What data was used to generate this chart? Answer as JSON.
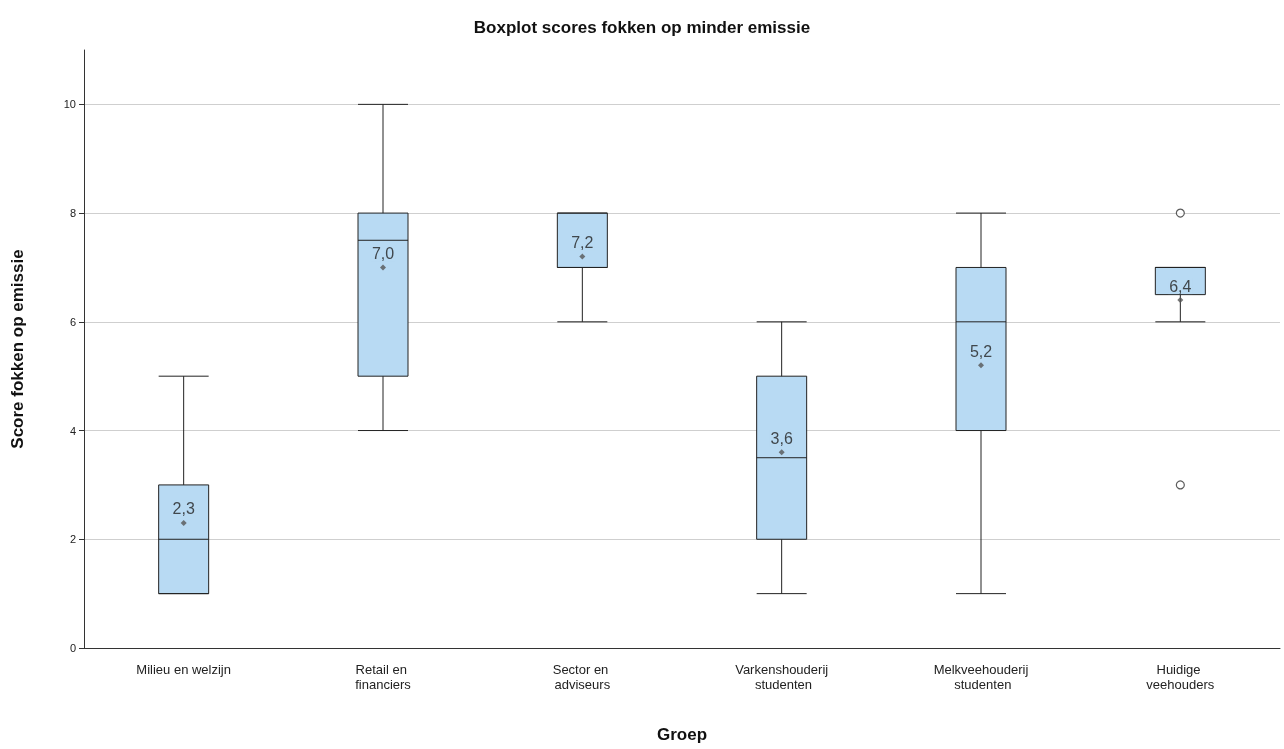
{
  "chart_data": {
    "type": "box",
    "title": "Boxplot scores fokken op minder emissie",
    "xlabel": "Groep",
    "ylabel": "Score fokken op emissie",
    "categories": [
      "Milieu en welzijn",
      "Retail en financiers",
      "Sector en adviseurs",
      "Varkenshouderij studenten",
      "Melkveehouderij studenten",
      "Huidige veehouders"
    ],
    "color": "#b8daf3",
    "boxes": [
      {
        "low": 1,
        "q1": 1,
        "median": 2,
        "q3": 3,
        "high": 5,
        "mean": 2.3
      },
      {
        "low": 4,
        "q1": 5,
        "median": 7.5,
        "q3": 8,
        "high": 10,
        "mean": 7.0
      },
      {
        "low": 6,
        "q1": 7,
        "median": 7,
        "q3": 8,
        "high": 8,
        "mean": 7.2
      },
      {
        "low": 1,
        "q1": 2,
        "median": 3.5,
        "q3": 5,
        "high": 6,
        "mean": 3.6
      },
      {
        "low": 1,
        "q1": 4,
        "median": 6,
        "q3": 7,
        "high": 8,
        "mean": 5.2
      },
      {
        "low": 6,
        "q1": 6.5,
        "median": 7,
        "q3": 7,
        "high": 7,
        "mean": 6.4,
        "outliers": [
          8,
          3
        ]
      }
    ],
    "value_labels": [
      "2,3",
      "7,0",
      "7,2",
      "3,6",
      "5,2",
      "6,4"
    ],
    "ylim": [
      0,
      11
    ],
    "yticks": [
      0,
      2,
      4,
      6,
      8,
      10
    ],
    "grid": "y"
  }
}
